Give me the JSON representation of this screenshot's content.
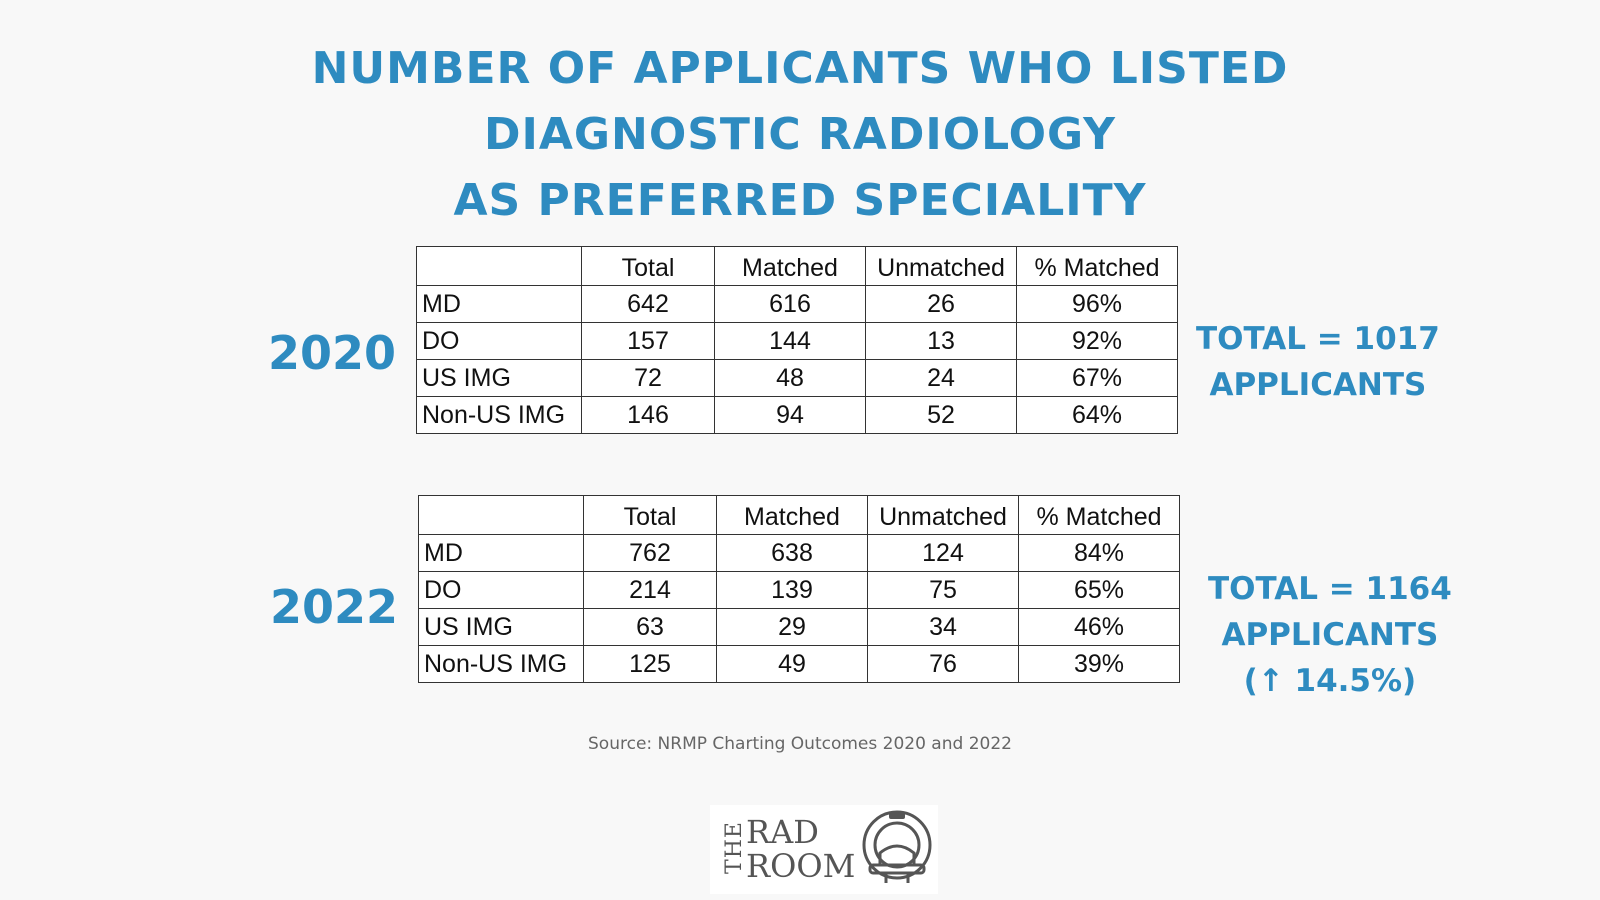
{
  "title": {
    "line1": "NUMBER OF APPLICANTS WHO LISTED",
    "line2": "DIAGNOSTIC RADIOLOGY",
    "line3": "AS PREFERRED SPECIALITY"
  },
  "colors": {
    "accent": "#2e8bc0",
    "background": "#f8f8f8"
  },
  "chart_data": [
    {
      "type": "table",
      "year": "2020",
      "columns": [
        "",
        "Total",
        "Matched",
        "Unmatched",
        "% Matched"
      ],
      "rows": [
        [
          "MD",
          "642",
          "616",
          "26",
          "96%"
        ],
        [
          "DO",
          "157",
          "144",
          "13",
          "92%"
        ],
        [
          "US IMG",
          "72",
          "48",
          "24",
          "67%"
        ],
        [
          "Non-US IMG",
          "146",
          "94",
          "52",
          "64%"
        ]
      ],
      "total": {
        "line1": "TOTAL = 1017",
        "line2": "APPLICANTS"
      }
    },
    {
      "type": "table",
      "year": "2022",
      "columns": [
        "",
        "Total",
        "Matched",
        "Unmatched",
        "% Matched"
      ],
      "rows": [
        [
          "MD",
          "762",
          "638",
          "124",
          "84%"
        ],
        [
          "DO",
          "214",
          "139",
          "75",
          "65%"
        ],
        [
          "US IMG",
          "63",
          "29",
          "34",
          "46%"
        ],
        [
          "Non-US IMG",
          "125",
          "49",
          "76",
          "39%"
        ]
      ],
      "total": {
        "line1": "TOTAL = 1164",
        "line2": "APPLICANTS",
        "line3": "(↑ 14.5%)"
      }
    }
  ],
  "source": "Source: NRMP Charting Outcomes 2020 and 2022",
  "logo": {
    "the": "THE",
    "word1": "RAD",
    "word2": "ROOM"
  }
}
